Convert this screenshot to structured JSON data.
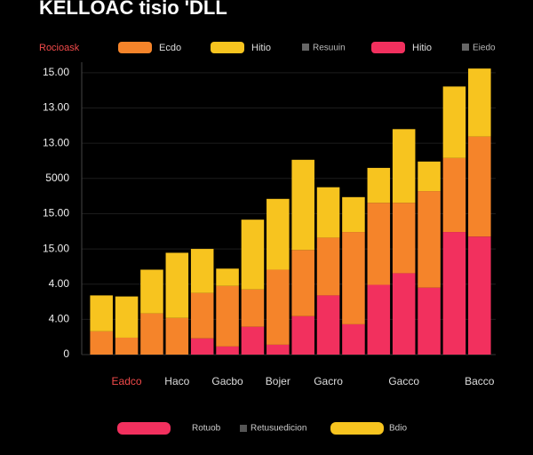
{
  "chart_data": {
    "type": "stacked-bar",
    "title": "KELLOAC tisio 'DLL",
    "legend_label": "Rocioask",
    "categories": [
      null,
      "Eadco",
      null,
      "Haco",
      null,
      "Gacbo",
      null,
      "Bojer",
      null,
      "Gacro",
      null,
      null,
      "Gacco",
      null,
      null,
      "Bacco"
    ],
    "series": [
      {
        "name": "Hitio",
        "color": "#f2305e",
        "values": [
          0,
          0,
          0,
          0,
          0.46,
          0.23,
          0.79,
          0.28,
          1.09,
          1.68,
          0.86,
          1.98,
          2.31,
          1.9,
          3.48,
          3.35
        ]
      },
      {
        "name": "Ecdo",
        "color": "#f5842a",
        "values": [
          0.66,
          0.48,
          1.17,
          1.04,
          1.29,
          1.72,
          1.06,
          2.13,
          1.88,
          1.64,
          2.62,
          2.33,
          2.0,
          2.74,
          2.1,
          2.84
        ]
      },
      {
        "name": "Hitio",
        "color": "#f7c41f",
        "values": [
          1.02,
          1.17,
          1.24,
          1.85,
          1.25,
          0.49,
          1.98,
          2.01,
          2.56,
          1.43,
          0.99,
          0.99,
          2.09,
          0.84,
          2.03,
          1.93
        ]
      }
    ],
    "legend_extra": [
      "Resuuin",
      "Eiedo"
    ],
    "bottom_legend": [
      {
        "label": "Rotuob",
        "color": "#f2305e"
      },
      {
        "label": "Retusuedicion",
        "color": "#555555"
      },
      {
        "label": "Bdio",
        "color": "#f7c41f"
      }
    ],
    "ylim": [
      0,
      8.3
    ],
    "yticks": [
      {
        "value": 0,
        "label": "0"
      },
      {
        "value": 1,
        "label": "4.00"
      },
      {
        "value": 2,
        "label": "4.00"
      },
      {
        "value": 3,
        "label": "15.00"
      },
      {
        "value": 4,
        "label": "15.00"
      },
      {
        "value": 5,
        "label": "5000"
      },
      {
        "value": 6,
        "label": "13.00"
      },
      {
        "value": 7,
        "label": "13.00"
      },
      {
        "value": 8,
        "label": "15.00"
      }
    ],
    "grid": true
  }
}
